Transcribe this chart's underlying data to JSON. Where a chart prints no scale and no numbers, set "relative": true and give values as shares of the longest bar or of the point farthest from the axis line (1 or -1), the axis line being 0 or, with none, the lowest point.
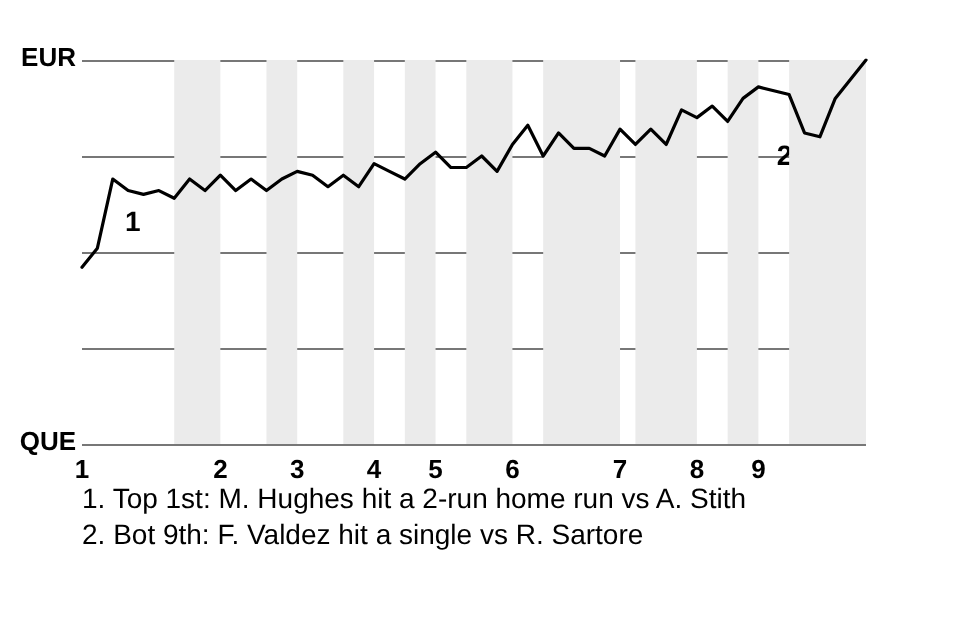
{
  "chart_data": {
    "type": "line",
    "relative": true,
    "categories": [
      "1",
      null,
      null,
      null,
      null,
      null,
      null,
      null,
      null,
      "2",
      null,
      null,
      null,
      null,
      "3",
      null,
      null,
      null,
      null,
      "4",
      null,
      null,
      null,
      "5",
      null,
      null,
      null,
      null,
      "6",
      null,
      null,
      null,
      null,
      null,
      null,
      "7",
      null,
      null,
      null,
      null,
      "8",
      null,
      null,
      null,
      "9",
      null,
      null,
      null,
      null,
      null,
      null,
      null
    ],
    "series": [
      {
        "color": "#000000",
        "values": [
          0.46,
          0.51,
          0.69,
          0.66,
          0.65,
          0.66,
          0.64,
          0.69,
          0.66,
          0.7,
          0.66,
          0.69,
          0.66,
          0.69,
          0.71,
          0.7,
          0.67,
          0.7,
          0.67,
          0.73,
          0.71,
          0.69,
          0.73,
          0.76,
          0.72,
          0.72,
          0.75,
          0.71,
          0.78,
          0.83,
          0.75,
          0.81,
          0.77,
          0.77,
          0.75,
          0.82,
          0.78,
          0.82,
          0.78,
          0.87,
          0.85,
          0.88,
          0.84,
          0.9,
          0.93,
          0.92,
          0.91,
          0.81,
          0.8,
          0.9,
          0.95,
          1.0
        ]
      }
    ],
    "grid": "y",
    "marker": "none",
    "line_style": "solid",
    "annotations": [
      "EUR",
      "QUE",
      "1",
      "2",
      "1. Top 1st: M. Hughes hit a 2-run home run vs A. Stith",
      "2. Bot 9th: F. Valdez hit a single vs R. Sartore"
    ]
  }
}
